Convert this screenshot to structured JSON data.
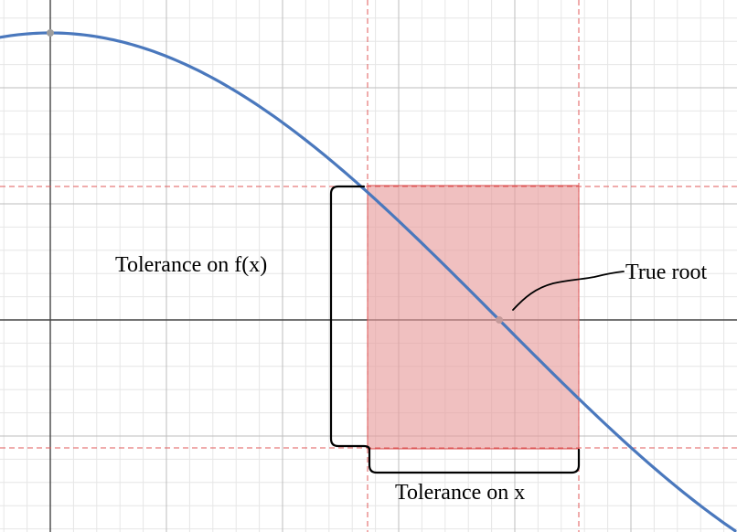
{
  "labels": {
    "tolerance_fx": "Tolerance on f(x)",
    "tolerance_x": "Tolerance on x",
    "true_root": "True root"
  },
  "colors": {
    "curve": "#4a78bd",
    "tolerance_box_fill": "#e79a9a",
    "tolerance_box_stroke": "#d94f4f",
    "guide_lines": "#e05a5a",
    "grid_minor": "#e6e6e6",
    "grid_major": "#bdbdbd",
    "axis": "#444444",
    "point": "#9e9e9e",
    "bracket": "#000000"
  },
  "curve": {
    "shape": "cosine-like arc",
    "description_points": [
      "maximum near the y-axis",
      "descends through the root",
      "continues downward past the tolerance box"
    ]
  },
  "icons": {
    "max_point": "point-marker",
    "root_point": "point-marker"
  }
}
